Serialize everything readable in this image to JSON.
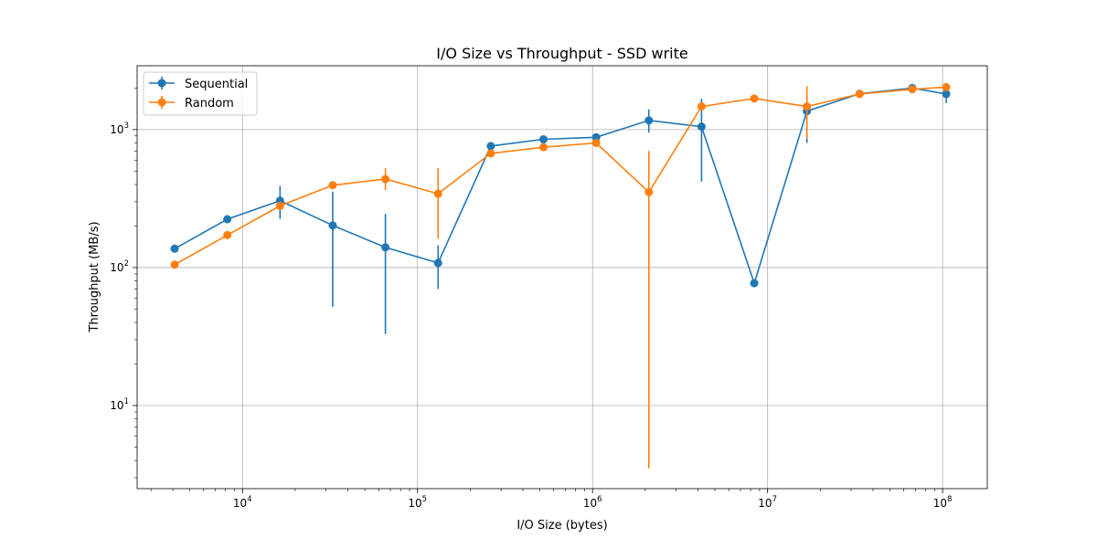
{
  "chart_data": {
    "type": "line",
    "title": "I/O Size vs Throughput - SSD write",
    "xlabel": "I/O Size (bytes)",
    "ylabel": "Throughput (MB/s)",
    "xscale": "log",
    "yscale": "log",
    "xlim": [
      2500,
      180000000
    ],
    "ylim": [
      2.5,
      2900
    ],
    "grid": true,
    "legend_position": "top-left",
    "x_ticks": [
      {
        "value": 10000,
        "base": "10",
        "exp": "4"
      },
      {
        "value": 100000,
        "base": "10",
        "exp": "5"
      },
      {
        "value": 1000000,
        "base": "10",
        "exp": "6"
      },
      {
        "value": 10000000,
        "base": "10",
        "exp": "7"
      },
      {
        "value": 100000000,
        "base": "10",
        "exp": "8"
      }
    ],
    "y_ticks": [
      {
        "value": 10,
        "base": "10",
        "exp": "1"
      },
      {
        "value": 100,
        "base": "10",
        "exp": "2"
      },
      {
        "value": 1000,
        "base": "10",
        "exp": "3"
      }
    ],
    "series": [
      {
        "name": "Sequential",
        "color": "#1f77b4",
        "x": [
          4096,
          8192,
          16384,
          32768,
          65536,
          131072,
          262144,
          524288,
          1048576,
          2097152,
          4194304,
          8388608,
          16777216,
          33554432,
          67108864,
          104857600
        ],
        "y": [
          137,
          224,
          305,
          202,
          140,
          108,
          760,
          850,
          880,
          1165,
          1050,
          77,
          1360,
          1820,
          2000,
          1810
        ],
        "err_low": [
          137,
          224,
          225,
          52,
          33,
          70,
          760,
          850,
          880,
          950,
          420,
          77,
          800,
          1820,
          2000,
          1560
        ],
        "err_high": [
          137,
          224,
          390,
          355,
          245,
          145,
          760,
          850,
          880,
          1400,
          1670,
          77,
          1750,
          1820,
          2000,
          2060
        ]
      },
      {
        "name": "Random",
        "color": "#ff7f0e",
        "x": [
          4096,
          8192,
          16384,
          32768,
          65536,
          131072,
          262144,
          524288,
          1048576,
          2097152,
          4194304,
          8388608,
          16777216,
          33554432,
          67108864,
          104857600
        ],
        "y": [
          105,
          172,
          280,
          395,
          438,
          343,
          672,
          745,
          800,
          352,
          1470,
          1680,
          1470,
          1810,
          1960,
          2030
        ],
        "err_low": [
          105,
          172,
          280,
          395,
          365,
          162,
          672,
          745,
          800,
          3.5,
          1470,
          1680,
          860,
          1810,
          1960,
          2030
        ],
        "err_high": [
          105,
          172,
          280,
          395,
          525,
          525,
          672,
          745,
          800,
          700,
          1470,
          1680,
          2060,
          1810,
          1960,
          2030
        ]
      }
    ]
  }
}
